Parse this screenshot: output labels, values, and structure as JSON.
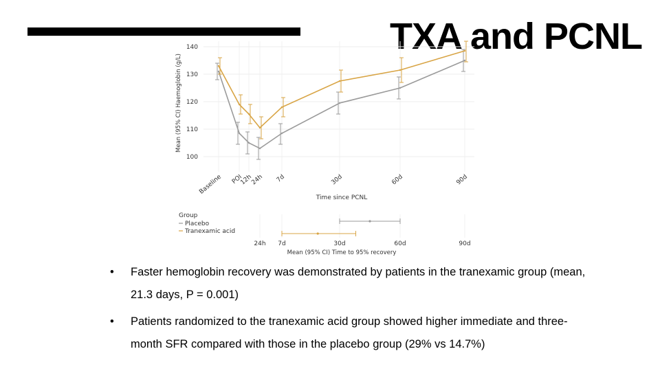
{
  "slide": {
    "title": "TXA and PCNL",
    "bullets": [
      "Faster hemoglobin recovery was demonstrated by patients in the tranexamic group (mean, 21.3 days, P = 0.001)",
      "Patients randomized to the tranexamic acid group showed higher immediate and three-month SFR compared with those in the placebo group (29% vs 14.7%)"
    ],
    "bullet_symbol": "•"
  },
  "chart_data": [
    {
      "type": "line",
      "xlabel": "Time since PCNL",
      "ylabel": "Mean (95% CI) Haemoglobin (g/L)",
      "categories": [
        "Baseline",
        "POI",
        "12h",
        "24h",
        "7d",
        "30d",
        "60d",
        "90d"
      ],
      "ylim": [
        97,
        142
      ],
      "yticks": [
        100,
        110,
        120,
        130,
        140
      ],
      "grid": true,
      "series": [
        {
          "name": "Placebo",
          "color": "#9a9a9a",
          "values": [
            131,
            108.5,
            105,
            103,
            108.5,
            119.5,
            125,
            135
          ],
          "ci_low": [
            128,
            104.5,
            101,
            99,
            104.5,
            115.5,
            121,
            131
          ],
          "ci_high": [
            134,
            112.5,
            109,
            107,
            112,
            123.5,
            129,
            139
          ]
        },
        {
          "name": "Tranexamic acid",
          "color": "#d8a444",
          "values": [
            133,
            119,
            115.5,
            110.5,
            118,
            127.5,
            131.5,
            138.5
          ],
          "ci_low": [
            130,
            115.5,
            112,
            106.5,
            114.5,
            123.5,
            127,
            134.5
          ],
          "ci_high": [
            136,
            122.5,
            119,
            114.5,
            121.5,
            131.5,
            136,
            142
          ]
        }
      ]
    },
    {
      "type": "scatter",
      "title": "Group",
      "xlabel": "Mean (95% CI) Time to 95% recovery",
      "xtick_labels": [
        "24h",
        "7d",
        "30d",
        "60d",
        "90d"
      ],
      "xticks_days": [
        1,
        7,
        30,
        60,
        90
      ],
      "series": [
        {
          "name": "Placebo",
          "color": "#9a9a9a",
          "mean": 45,
          "ci": [
            30,
            60
          ]
        },
        {
          "name": "Tranexamic acid",
          "color": "#d8a444",
          "mean": 21.3,
          "ci": [
            7,
            38
          ]
        }
      ],
      "legend": "top-left"
    }
  ]
}
